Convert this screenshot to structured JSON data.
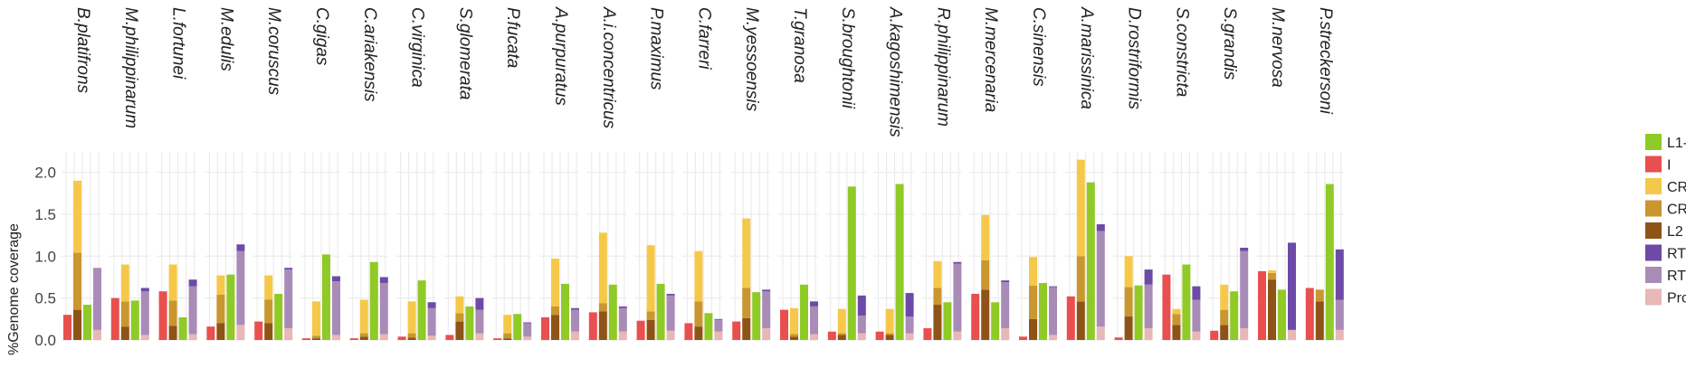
{
  "chart_data": {
    "type": "bar",
    "layout": "faceted-stacked-bar",
    "ylabel": "%Genome coverage",
    "ylim": [
      0,
      2.2
    ],
    "yticks": [
      "2.0",
      "1.5",
      "1.0",
      "0.5",
      "0.0"
    ],
    "ytick_values": [
      2.0,
      1.5,
      1.0,
      0.5,
      0.0
    ],
    "grid": true,
    "legend_position": "right",
    "legend": [
      {
        "label": "L1-",
        "color": "#8fca27"
      },
      {
        "label": "I",
        "color": "#e94f4f"
      },
      {
        "label": "CR",
        "color": "#f6c84a"
      },
      {
        "label": "CR",
        "color": "#c9962f"
      },
      {
        "label": "L2",
        "color": "#8e5316"
      },
      {
        "label": "RT",
        "color": "#6d4aa8"
      },
      {
        "label": "RT",
        "color": "#a98bb8"
      },
      {
        "label": "Pro",
        "color": "#e8b7b7"
      }
    ],
    "panels": [
      {
        "species": "B.platifrons",
        "bars": [
          {
            "color": "#e94f4f",
            "segments": [
              0.3
            ]
          },
          {
            "color": "#8e5316",
            "segments": [
              0.36,
              0.68,
              0.86
            ]
          },
          {
            "color": "#8fca27",
            "segments": [
              0.42
            ]
          },
          {
            "color": "#a98bb8",
            "segments": [
              0.12,
              0.74
            ]
          }
        ]
      },
      {
        "species": "M.philippinarum",
        "bars": [
          {
            "color": "#e94f4f",
            "segments": [
              0.5
            ]
          },
          {
            "color": "#8e5316",
            "segments": [
              0.16,
              0.3,
              0.44
            ]
          },
          {
            "color": "#8fca27",
            "segments": [
              0.47
            ]
          },
          {
            "color": "#a98bb8",
            "segments": [
              0.06,
              0.52,
              0.04
            ]
          }
        ]
      },
      {
        "species": "L.fortunei",
        "bars": [
          {
            "color": "#e94f4f",
            "segments": [
              0.58
            ]
          },
          {
            "color": "#8e5316",
            "segments": [
              0.17,
              0.3,
              0.43
            ]
          },
          {
            "color": "#8fca27",
            "segments": [
              0.27
            ]
          },
          {
            "color": "#a98bb8",
            "segments": [
              0.07,
              0.57,
              0.08
            ]
          }
        ]
      },
      {
        "species": "M.edulis",
        "bars": [
          {
            "color": "#e94f4f",
            "segments": [
              0.16
            ]
          },
          {
            "color": "#8e5316",
            "segments": [
              0.2,
              0.34,
              0.23
            ]
          },
          {
            "color": "#8fca27",
            "segments": [
              0.78
            ]
          },
          {
            "color": "#a98bb8",
            "segments": [
              0.18,
              0.88,
              0.08
            ]
          }
        ]
      },
      {
        "species": "M.coruscus",
        "bars": [
          {
            "color": "#e94f4f",
            "segments": [
              0.22
            ]
          },
          {
            "color": "#8e5316",
            "segments": [
              0.2,
              0.28,
              0.29
            ]
          },
          {
            "color": "#8fca27",
            "segments": [
              0.55
            ]
          },
          {
            "color": "#a98bb8",
            "segments": [
              0.14,
              0.7,
              0.02
            ]
          }
        ]
      },
      {
        "species": "C.gigas",
        "bars": [
          {
            "color": "#e94f4f",
            "segments": [
              0.02
            ]
          },
          {
            "color": "#8e5316",
            "segments": [
              0.02,
              0.03,
              0.41
            ]
          },
          {
            "color": "#8fca27",
            "segments": [
              1.02
            ]
          },
          {
            "color": "#a98bb8",
            "segments": [
              0.06,
              0.64,
              0.06
            ]
          }
        ]
      },
      {
        "species": "C.ariakensis",
        "bars": [
          {
            "color": "#e94f4f",
            "segments": [
              0.02
            ]
          },
          {
            "color": "#8e5316",
            "segments": [
              0.04,
              0.04,
              0.4
            ]
          },
          {
            "color": "#8fca27",
            "segments": [
              0.93
            ]
          },
          {
            "color": "#a98bb8",
            "segments": [
              0.07,
              0.61,
              0.07
            ]
          }
        ]
      },
      {
        "species": "C.virginica",
        "bars": [
          {
            "color": "#e94f4f",
            "segments": [
              0.04
            ]
          },
          {
            "color": "#8e5316",
            "segments": [
              0.03,
              0.05,
              0.38
            ]
          },
          {
            "color": "#8fca27",
            "segments": [
              0.71
            ]
          },
          {
            "color": "#a98bb8",
            "segments": [
              0.05,
              0.33,
              0.07
            ]
          }
        ]
      },
      {
        "species": "S.glomerata",
        "bars": [
          {
            "color": "#e94f4f",
            "segments": [
              0.06
            ]
          },
          {
            "color": "#8e5316",
            "segments": [
              0.22,
              0.1,
              0.2
            ]
          },
          {
            "color": "#8fca27",
            "segments": [
              0.4
            ]
          },
          {
            "color": "#a98bb8",
            "segments": [
              0.08,
              0.28,
              0.14
            ]
          }
        ]
      },
      {
        "species": "P.fucata",
        "bars": [
          {
            "color": "#e94f4f",
            "segments": [
              0.02
            ]
          },
          {
            "color": "#8e5316",
            "segments": [
              0.02,
              0.06,
              0.22
            ]
          },
          {
            "color": "#8fca27",
            "segments": [
              0.31
            ]
          },
          {
            "color": "#a98bb8",
            "segments": [
              0.04,
              0.16,
              0.01
            ]
          }
        ]
      },
      {
        "species": "A.purpuratus",
        "bars": [
          {
            "color": "#e94f4f",
            "segments": [
              0.27
            ]
          },
          {
            "color": "#8e5316",
            "segments": [
              0.3,
              0.1,
              0.57
            ]
          },
          {
            "color": "#8fca27",
            "segments": [
              0.67
            ]
          },
          {
            "color": "#a98bb8",
            "segments": [
              0.1,
              0.26,
              0.02
            ]
          }
        ]
      },
      {
        "species": "A.i.concentricus",
        "bars": [
          {
            "color": "#e94f4f",
            "segments": [
              0.33
            ]
          },
          {
            "color": "#8e5316",
            "segments": [
              0.34,
              0.1,
              0.84
            ]
          },
          {
            "color": "#8fca27",
            "segments": [
              0.66
            ]
          },
          {
            "color": "#a98bb8",
            "segments": [
              0.1,
              0.28,
              0.02
            ]
          }
        ]
      },
      {
        "species": "P.maximus",
        "bars": [
          {
            "color": "#e94f4f",
            "segments": [
              0.23
            ]
          },
          {
            "color": "#8e5316",
            "segments": [
              0.24,
              0.1,
              0.79
            ]
          },
          {
            "color": "#8fca27",
            "segments": [
              0.67
            ]
          },
          {
            "color": "#a98bb8",
            "segments": [
              0.11,
              0.42,
              0.02
            ]
          }
        ]
      },
      {
        "species": "C.farreri",
        "bars": [
          {
            "color": "#e94f4f",
            "segments": [
              0.2
            ]
          },
          {
            "color": "#8e5316",
            "segments": [
              0.16,
              0.3,
              0.6
            ]
          },
          {
            "color": "#8fca27",
            "segments": [
              0.32
            ]
          },
          {
            "color": "#a98bb8",
            "segments": [
              0.1,
              0.14,
              0.01
            ]
          }
        ]
      },
      {
        "species": "M.yessoensis",
        "bars": [
          {
            "color": "#e94f4f",
            "segments": [
              0.22
            ]
          },
          {
            "color": "#8e5316",
            "segments": [
              0.26,
              0.36,
              0.83
            ]
          },
          {
            "color": "#8fca27",
            "segments": [
              0.57
            ]
          },
          {
            "color": "#a98bb8",
            "segments": [
              0.14,
              0.44,
              0.02
            ]
          }
        ]
      },
      {
        "species": "T.granosa",
        "bars": [
          {
            "color": "#e94f4f",
            "segments": [
              0.36
            ]
          },
          {
            "color": "#8e5316",
            "segments": [
              0.04,
              0.03,
              0.31
            ]
          },
          {
            "color": "#8fca27",
            "segments": [
              0.66
            ]
          },
          {
            "color": "#a98bb8",
            "segments": [
              0.07,
              0.33,
              0.06
            ]
          }
        ]
      },
      {
        "species": "S.broughtonii",
        "bars": [
          {
            "color": "#e94f4f",
            "segments": [
              0.1
            ]
          },
          {
            "color": "#8e5316",
            "segments": [
              0.06,
              0.02,
              0.29
            ]
          },
          {
            "color": "#8fca27",
            "segments": [
              1.83
            ]
          },
          {
            "color": "#a98bb8",
            "segments": [
              0.08,
              0.21,
              0.24
            ]
          }
        ]
      },
      {
        "species": "A.kagoshimensis",
        "bars": [
          {
            "color": "#e94f4f",
            "segments": [
              0.1
            ]
          },
          {
            "color": "#8e5316",
            "segments": [
              0.06,
              0.02,
              0.29
            ]
          },
          {
            "color": "#8fca27",
            "segments": [
              1.86
            ]
          },
          {
            "color": "#a98bb8",
            "segments": [
              0.08,
              0.2,
              0.28
            ]
          }
        ]
      },
      {
        "species": "R.philippinarum",
        "bars": [
          {
            "color": "#e94f4f",
            "segments": [
              0.14
            ]
          },
          {
            "color": "#8e5316",
            "segments": [
              0.42,
              0.2,
              0.32
            ]
          },
          {
            "color": "#8fca27",
            "segments": [
              0.45
            ]
          },
          {
            "color": "#a98bb8",
            "segments": [
              0.1,
              0.81,
              0.02
            ]
          }
        ]
      },
      {
        "species": "M.mercenaria",
        "bars": [
          {
            "color": "#e94f4f",
            "segments": [
              0.55
            ]
          },
          {
            "color": "#8e5316",
            "segments": [
              0.6,
              0.35,
              0.54
            ]
          },
          {
            "color": "#8fca27",
            "segments": [
              0.45
            ]
          },
          {
            "color": "#a98bb8",
            "segments": [
              0.14,
              0.55,
              0.02
            ]
          }
        ]
      },
      {
        "species": "C.sinensis",
        "bars": [
          {
            "color": "#e94f4f",
            "segments": [
              0.04
            ]
          },
          {
            "color": "#8e5316",
            "segments": [
              0.25,
              0.4,
              0.34
            ]
          },
          {
            "color": "#8fca27",
            "segments": [
              0.68
            ]
          },
          {
            "color": "#a98bb8",
            "segments": [
              0.06,
              0.57,
              0.01
            ]
          }
        ]
      },
      {
        "species": "A.marissinica",
        "bars": [
          {
            "color": "#e94f4f",
            "segments": [
              0.52
            ]
          },
          {
            "color": "#8e5316",
            "segments": [
              0.46,
              0.54,
              1.15
            ]
          },
          {
            "color": "#8fca27",
            "segments": [
              1.88
            ]
          },
          {
            "color": "#a98bb8",
            "segments": [
              0.16,
              1.14,
              0.08
            ]
          }
        ]
      },
      {
        "species": "D.rostriformis",
        "bars": [
          {
            "color": "#e94f4f",
            "segments": [
              0.03
            ]
          },
          {
            "color": "#8e5316",
            "segments": [
              0.28,
              0.35,
              0.37
            ]
          },
          {
            "color": "#8fca27",
            "segments": [
              0.65
            ]
          },
          {
            "color": "#a98bb8",
            "segments": [
              0.14,
              0.52,
              0.18
            ]
          }
        ]
      },
      {
        "species": "S.constricta",
        "bars": [
          {
            "color": "#e94f4f",
            "segments": [
              0.78
            ]
          },
          {
            "color": "#8e5316",
            "segments": [
              0.18,
              0.13,
              0.06
            ]
          },
          {
            "color": "#8fca27",
            "segments": [
              0.9
            ]
          },
          {
            "color": "#a98bb8",
            "segments": [
              0.1,
              0.38,
              0.16
            ]
          }
        ]
      },
      {
        "species": "S.grandis",
        "bars": [
          {
            "color": "#e94f4f",
            "segments": [
              0.11
            ]
          },
          {
            "color": "#8e5316",
            "segments": [
              0.18,
              0.18,
              0.3
            ]
          },
          {
            "color": "#8fca27",
            "segments": [
              0.58
            ]
          },
          {
            "color": "#a98bb8",
            "segments": [
              0.14,
              0.92,
              0.04
            ]
          }
        ]
      },
      {
        "species": "M.nervosa",
        "bars": [
          {
            "color": "#e94f4f",
            "segments": [
              0.82
            ]
          },
          {
            "color": "#8e5316",
            "segments": [
              0.72,
              0.08,
              0.03
            ]
          },
          {
            "color": "#8fca27",
            "segments": [
              0.6
            ]
          },
          {
            "color": "#a98bb8",
            "segments": [
              0.12,
              0.0,
              1.04
            ]
          }
        ]
      },
      {
        "species": "P.streckersoni",
        "bars": [
          {
            "color": "#e94f4f",
            "segments": [
              0.62
            ]
          },
          {
            "color": "#8e5316",
            "segments": [
              0.46,
              0.14,
              0.0
            ]
          },
          {
            "color": "#8fca27",
            "segments": [
              1.86
            ]
          },
          {
            "color": "#a98bb8",
            "segments": [
              0.12,
              0.36,
              0.6
            ]
          }
        ]
      }
    ]
  }
}
